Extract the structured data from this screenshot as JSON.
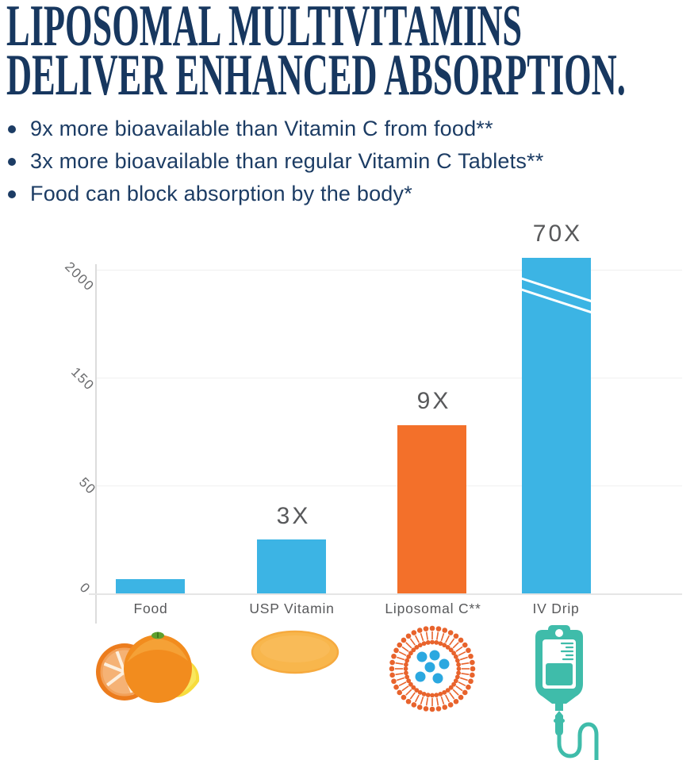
{
  "title": {
    "line1": "LIPOSOMAL MULTIVITAMINS",
    "line2": "DELIVER ENHANCED ABSORPTION."
  },
  "bullets": [
    "9x more bioavailable than Vitamin C from food**",
    "3x more bioavailable than regular Vitamin C Tablets**",
    "Food can block absorption by the body*"
  ],
  "chart_data": {
    "type": "bar",
    "categories": [
      "Food",
      "USP Vitamin",
      "Liposomal C**",
      "IV Drip"
    ],
    "values": [
      1,
      3,
      9,
      70
    ],
    "bar_labels": [
      "",
      "3X",
      "9X",
      "70X"
    ],
    "bar_colors": [
      "#3CB4E4",
      "#3CB4E4",
      "#F3702A",
      "#3CB4E4"
    ],
    "y_ticks": [
      "0",
      "50",
      "150",
      "2000"
    ],
    "ylabel": "",
    "xlabel": "",
    "title": "",
    "ylim": [
      0,
      2200
    ],
    "grid": true,
    "legend": false,
    "axis_note": "non-linear broken y-axis; IV Drip bar carries double break marks near top"
  },
  "icons": {
    "food": "oranges-and-lemon-icon",
    "usp_vitamin": "tablet-pill-icon",
    "liposomal": "liposome-bilayer-icon",
    "iv_drip": "iv-bag-icon"
  },
  "colors": {
    "headline_navy": "#17375F",
    "body_navy": "#1C3C64",
    "bar_blue": "#3CB4E4",
    "bar_orange": "#F3702A",
    "label_gray": "#58595B",
    "iv_teal": "#3FBCAA",
    "liposome_orange": "#E8632C",
    "liposome_dot_blue": "#2BA8E0"
  }
}
